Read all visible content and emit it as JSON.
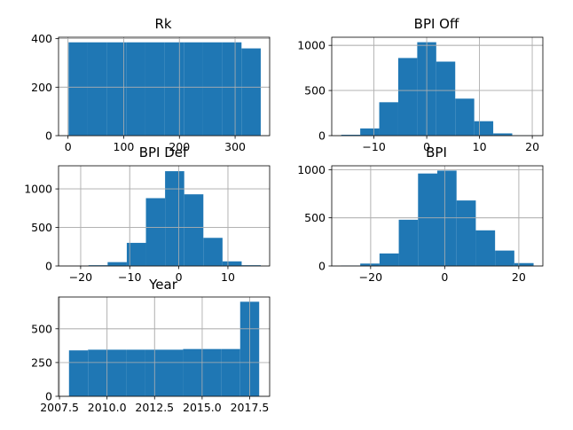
{
  "colors": {
    "bar": "#1f77b4",
    "grid": "#b0b0b0",
    "axis": "#000000"
  },
  "chart_data": [
    {
      "type": "bar",
      "title": "Rk",
      "grid": true,
      "xlim": [
        -17,
        362
      ],
      "ylim": [
        0,
        406
      ],
      "xticks": [
        0,
        100,
        200,
        300
      ],
      "xtick_labels": [
        "0",
        "100",
        "200",
        "300"
      ],
      "yticks": [
        0,
        200,
        400
      ],
      "ytick_labels": [
        "0",
        "200",
        "400"
      ],
      "bins": [
        {
          "x0": 1,
          "x1": 35.5,
          "count": 385
        },
        {
          "x0": 35.5,
          "x1": 70,
          "count": 385
        },
        {
          "x0": 70,
          "x1": 104.5,
          "count": 385
        },
        {
          "x0": 104.5,
          "x1": 139,
          "count": 385
        },
        {
          "x0": 139,
          "x1": 173.5,
          "count": 385
        },
        {
          "x0": 173.5,
          "x1": 208,
          "count": 385
        },
        {
          "x0": 208,
          "x1": 242.5,
          "count": 385
        },
        {
          "x0": 242.5,
          "x1": 277,
          "count": 385
        },
        {
          "x0": 277,
          "x1": 311.5,
          "count": 385
        },
        {
          "x0": 311.5,
          "x1": 346,
          "count": 360
        }
      ]
    },
    {
      "type": "bar",
      "title": "BPI Off",
      "grid": true,
      "xlim": [
        -18,
        22
      ],
      "ylim": [
        0,
        1090
      ],
      "xticks": [
        -10,
        0,
        10,
        20
      ],
      "xtick_labels": [
        "−10",
        "0",
        "10",
        "20"
      ],
      "yticks": [
        0,
        500,
        1000
      ],
      "ytick_labels": [
        "0",
        "500",
        "1000"
      ],
      "bins": [
        {
          "x0": -16.2,
          "x1": -12.6,
          "count": 10
        },
        {
          "x0": -12.6,
          "x1": -9.0,
          "count": 80
        },
        {
          "x0": -9.0,
          "x1": -5.4,
          "count": 370
        },
        {
          "x0": -5.4,
          "x1": -1.8,
          "count": 860
        },
        {
          "x0": -1.8,
          "x1": 1.8,
          "count": 1035
        },
        {
          "x0": 1.8,
          "x1": 5.4,
          "count": 820
        },
        {
          "x0": 5.4,
          "x1": 9.0,
          "count": 410
        },
        {
          "x0": 9.0,
          "x1": 12.6,
          "count": 160
        },
        {
          "x0": 12.6,
          "x1": 16.2,
          "count": 25
        },
        {
          "x0": 16.2,
          "x1": 19.8,
          "count": 5
        }
      ]
    },
    {
      "type": "bar",
      "title": "BPI Def",
      "grid": true,
      "xlim": [
        -24.5,
        18.5
      ],
      "ylim": [
        0,
        1300
      ],
      "xticks": [
        -20,
        -10,
        0,
        10
      ],
      "xtick_labels": [
        "−20",
        "−10",
        "0",
        "10"
      ],
      "yticks": [
        0,
        500,
        1000
      ],
      "ytick_labels": [
        "0",
        "500",
        "1000"
      ],
      "bins": [
        {
          "x0": -22.3,
          "x1": -18.4,
          "count": 3
        },
        {
          "x0": -18.4,
          "x1": -14.5,
          "count": 10
        },
        {
          "x0": -14.5,
          "x1": -10.6,
          "count": 50
        },
        {
          "x0": -10.6,
          "x1": -6.7,
          "count": 300
        },
        {
          "x0": -6.7,
          "x1": -2.8,
          "count": 880
        },
        {
          "x0": -2.8,
          "x1": 1.1,
          "count": 1230
        },
        {
          "x0": 1.1,
          "x1": 5.0,
          "count": 930
        },
        {
          "x0": 5.0,
          "x1": 8.9,
          "count": 365
        },
        {
          "x0": 8.9,
          "x1": 12.8,
          "count": 60
        },
        {
          "x0": 12.8,
          "x1": 16.7,
          "count": 10
        }
      ]
    },
    {
      "type": "bar",
      "title": "BPI",
      "grid": true,
      "xlim": [
        -30.5,
        26.5
      ],
      "ylim": [
        0,
        1040
      ],
      "xticks": [
        -20,
        0,
        20
      ],
      "xtick_labels": [
        "−20",
        "0",
        "20"
      ],
      "yticks": [
        0,
        500,
        1000
      ],
      "ytick_labels": [
        "0",
        "500",
        "1000"
      ],
      "bins": [
        {
          "x0": -28.0,
          "x1": -22.8,
          "count": 5
        },
        {
          "x0": -22.8,
          "x1": -17.6,
          "count": 25
        },
        {
          "x0": -17.6,
          "x1": -12.4,
          "count": 130
        },
        {
          "x0": -12.4,
          "x1": -7.2,
          "count": 480
        },
        {
          "x0": -7.2,
          "x1": -2.0,
          "count": 960
        },
        {
          "x0": -2.0,
          "x1": 3.2,
          "count": 990
        },
        {
          "x0": 3.2,
          "x1": 8.4,
          "count": 680
        },
        {
          "x0": 8.4,
          "x1": 13.6,
          "count": 370
        },
        {
          "x0": 13.6,
          "x1": 18.8,
          "count": 160
        },
        {
          "x0": 18.8,
          "x1": 24.0,
          "count": 30
        }
      ]
    },
    {
      "type": "bar",
      "title": "Year",
      "grid": true,
      "xlim": [
        2007.45,
        2018.55
      ],
      "ylim": [
        0,
        735
      ],
      "xticks": [
        2007.5,
        2010.0,
        2012.5,
        2015.0,
        2017.5
      ],
      "xtick_labels": [
        "2007.5",
        "2010.0",
        "2012.5",
        "2015.0",
        "2017.5"
      ],
      "yticks": [
        0,
        250,
        500
      ],
      "ytick_labels": [
        "0",
        "250",
        "500"
      ],
      "bins": [
        {
          "x0": 2008.0,
          "x1": 2009.0,
          "count": 340
        },
        {
          "x0": 2009.0,
          "x1": 2010.0,
          "count": 345
        },
        {
          "x0": 2010.0,
          "x1": 2011.0,
          "count": 345
        },
        {
          "x0": 2011.0,
          "x1": 2012.0,
          "count": 345
        },
        {
          "x0": 2012.0,
          "x1": 2013.0,
          "count": 345
        },
        {
          "x0": 2013.0,
          "x1": 2014.0,
          "count": 345
        },
        {
          "x0": 2014.0,
          "x1": 2015.0,
          "count": 350
        },
        {
          "x0": 2015.0,
          "x1": 2016.0,
          "count": 350
        },
        {
          "x0": 2016.0,
          "x1": 2017.0,
          "count": 350
        },
        {
          "x0": 2017.0,
          "x1": 2018.0,
          "count": 700
        }
      ]
    }
  ]
}
